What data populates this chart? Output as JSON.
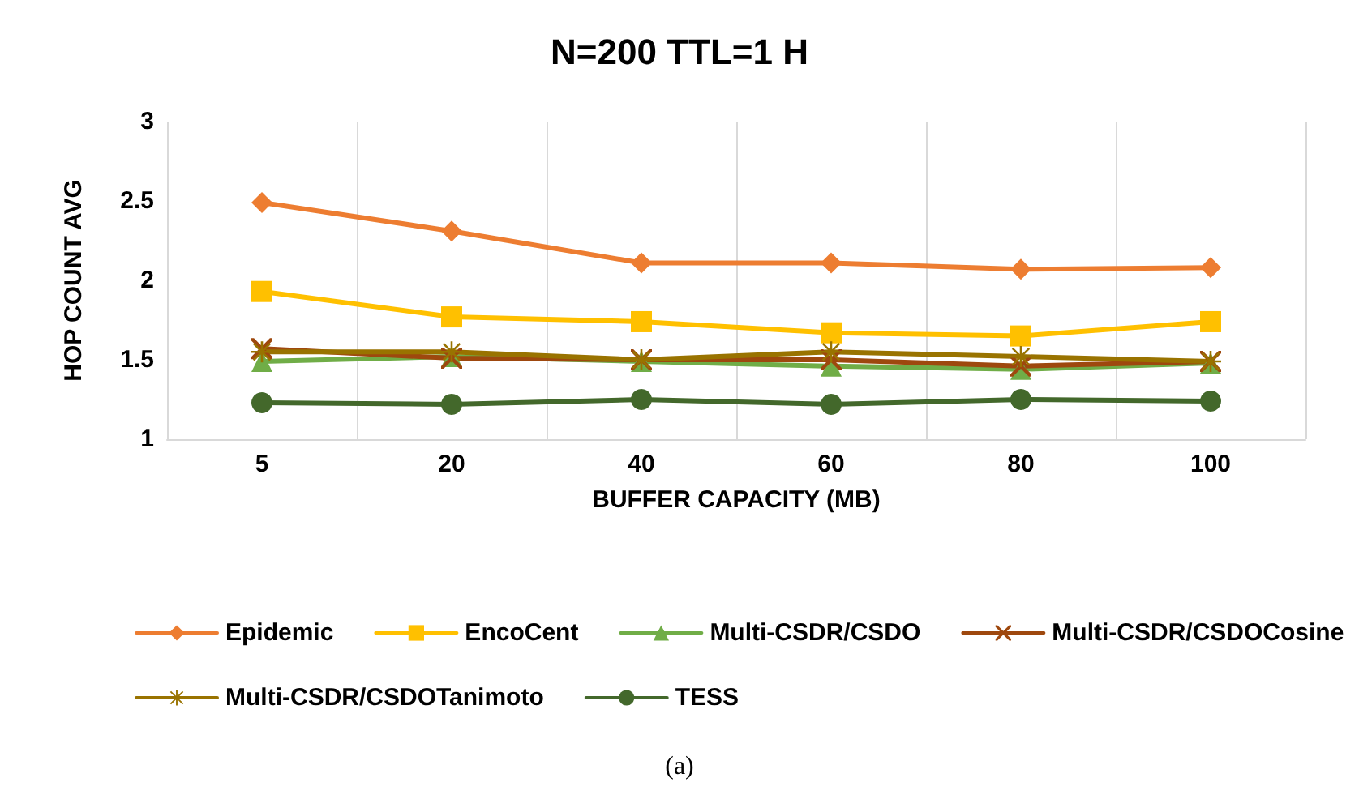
{
  "chart_data": {
    "type": "line",
    "title": "N=200 TTL=1 H",
    "xlabel": "BUFFER CAPACITY (MB)",
    "ylabel": "HOP COUNT AVG",
    "categories": [
      "5",
      "20",
      "40",
      "60",
      "80",
      "100"
    ],
    "ylim": [
      1,
      3
    ],
    "yticks": [
      1,
      1.5,
      2,
      2.5,
      3
    ],
    "grid": "x",
    "legend": "bottom",
    "series": [
      {
        "name": "Epidemic",
        "color": "#ed7d31",
        "marker": "diamond",
        "values": [
          2.49,
          2.31,
          2.11,
          2.11,
          2.07,
          2.08
        ]
      },
      {
        "name": "EncoCent",
        "color": "#ffc000",
        "marker": "square",
        "values": [
          1.93,
          1.77,
          1.74,
          1.67,
          1.65,
          1.74
        ]
      },
      {
        "name": "Multi-CSDR/CSDO",
        "color": "#70ad47",
        "marker": "triangle",
        "values": [
          1.49,
          1.52,
          1.49,
          1.46,
          1.44,
          1.48
        ]
      },
      {
        "name": "Multi-CSDR/CSDOCosine",
        "color": "#9e480e",
        "marker": "cross",
        "values": [
          1.57,
          1.51,
          1.5,
          1.5,
          1.46,
          1.49
        ]
      },
      {
        "name": "Multi-CSDR/CSDOTanimoto",
        "color": "#997300",
        "marker": "star",
        "values": [
          1.55,
          1.55,
          1.5,
          1.55,
          1.52,
          1.49
        ]
      },
      {
        "name": "TESS",
        "color": "#43682b",
        "marker": "circle",
        "values": [
          1.23,
          1.22,
          1.25,
          1.22,
          1.25,
          1.24
        ]
      }
    ],
    "annotations": [
      "(a)"
    ]
  }
}
